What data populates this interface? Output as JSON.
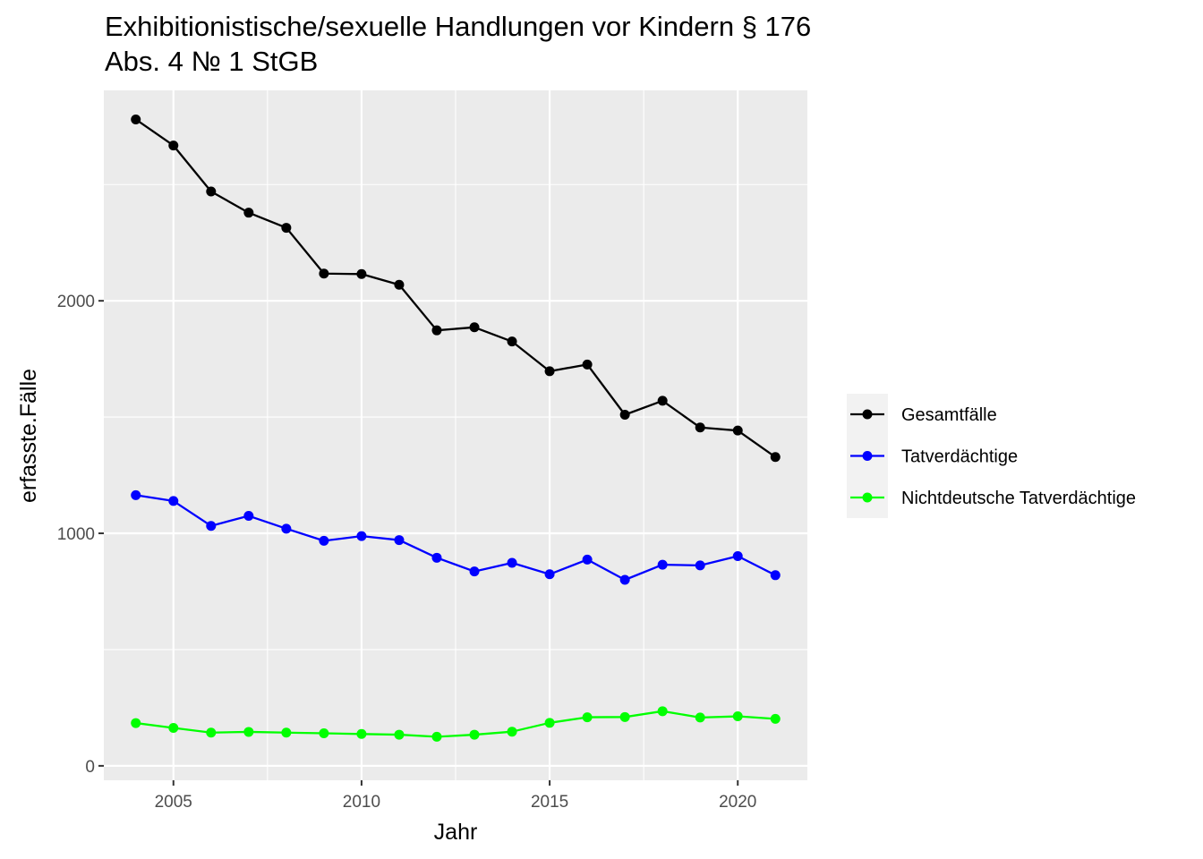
{
  "chart_data": {
    "type": "line",
    "title_lines": [
      "Exhibitionistische/sexuelle Handlungen vor Kindern § 176",
      "Abs. 4 № 1 StGB"
    ],
    "xlabel": "Jahr",
    "ylabel": "erfasste.Fälle",
    "x": [
      2004,
      2005,
      2006,
      2007,
      2008,
      2009,
      2010,
      2011,
      2012,
      2013,
      2014,
      2015,
      2016,
      2017,
      2018,
      2019,
      2020,
      2021
    ],
    "xlim": [
      2003.15,
      2021.85
    ],
    "ylim": [
      -62,
      2905
    ],
    "x_ticks": [
      2005,
      2010,
      2015,
      2020
    ],
    "x_minor_ticks": [
      2002.5,
      2007.5,
      2012.5,
      2017.5
    ],
    "y_ticks": [
      0,
      1000,
      2000
    ],
    "y_minor_ticks": [
      500,
      1500,
      2500
    ],
    "grid": true,
    "legend_position": "right",
    "series": [
      {
        "name": "Gesamtfälle",
        "color": "#000000",
        "values": [
          2780,
          2668,
          2470,
          2379,
          2314,
          2117,
          2115,
          2069,
          1873,
          1886,
          1825,
          1697,
          1726,
          1510,
          1570,
          1455,
          1442,
          1328
        ]
      },
      {
        "name": "Tatverdächtige",
        "color": "#0000ff",
        "values": [
          1164,
          1139,
          1032,
          1075,
          1020,
          968,
          988,
          971,
          895,
          836,
          873,
          824,
          887,
          800,
          865,
          862,
          902,
          820
        ]
      },
      {
        "name": "Nichtdeutsche Tatverdächtige",
        "color": "#00ff00",
        "values": [
          184,
          163,
          143,
          146,
          143,
          140,
          137,
          134,
          125,
          134,
          147,
          185,
          209,
          210,
          235,
          208,
          213,
          202
        ]
      }
    ]
  }
}
